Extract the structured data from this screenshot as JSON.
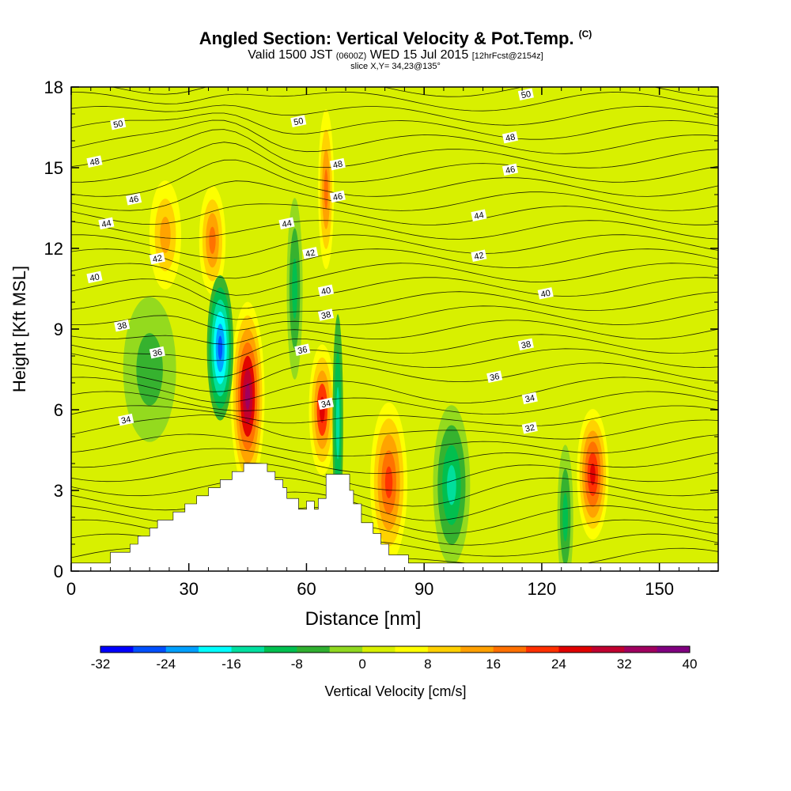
{
  "title": {
    "main": "Angled Section: Vertical Velocity & Pot.Temp.",
    "main_unit": "(C)",
    "valid_prefix": "Valid 1500 JST",
    "valid_utc": "(0600Z)",
    "valid_date": "WED 15 Jul 2015",
    "forecast": "[12hrFcst@2154z]",
    "slice": "slice X,Y= 34,23@135°"
  },
  "chart_data": {
    "type": "heatmap",
    "xlabel": "Distance [nm]",
    "ylabel": "Height [Kft MSL]",
    "xlim": [
      0,
      165
    ],
    "ylim": [
      0,
      18
    ],
    "xticks": [
      0,
      30,
      60,
      90,
      120,
      150
    ],
    "yticks": [
      0,
      3,
      6,
      9,
      12,
      15,
      18
    ],
    "colorbar": {
      "label": "Vertical Velocity [cm/s]",
      "ticks": [
        -32,
        -24,
        -16,
        -8,
        0,
        8,
        16,
        24,
        32,
        40
      ],
      "colors": [
        "#0000ff",
        "#0050ff",
        "#00a0ff",
        "#00ffff",
        "#00e0a0",
        "#00c050",
        "#30b030",
        "#90d820",
        "#d8f000",
        "#ffff00",
        "#ffd000",
        "#ffa000",
        "#ff7000",
        "#ff3000",
        "#e00000",
        "#c00030",
        "#a00060",
        "#800080"
      ]
    },
    "terrain": [
      [
        0,
        0.3
      ],
      [
        10,
        0.3
      ],
      [
        10,
        0.7
      ],
      [
        15,
        0.7
      ],
      [
        15,
        1.0
      ],
      [
        17,
        1.0
      ],
      [
        17,
        1.3
      ],
      [
        20,
        1.3
      ],
      [
        20,
        1.6
      ],
      [
        22,
        1.6
      ],
      [
        22,
        1.9
      ],
      [
        26,
        1.9
      ],
      [
        26,
        2.2
      ],
      [
        29,
        2.2
      ],
      [
        29,
        2.5
      ],
      [
        32,
        2.5
      ],
      [
        32,
        2.8
      ],
      [
        35,
        2.8
      ],
      [
        35,
        3.1
      ],
      [
        38,
        3.1
      ],
      [
        38,
        3.4
      ],
      [
        41,
        3.4
      ],
      [
        41,
        3.7
      ],
      [
        44,
        3.7
      ],
      [
        44,
        4.0
      ],
      [
        50,
        4.0
      ],
      [
        50,
        3.7
      ],
      [
        52,
        3.7
      ],
      [
        52,
        3.4
      ],
      [
        54,
        3.4
      ],
      [
        54,
        3.1
      ],
      [
        55,
        3.1
      ],
      [
        55,
        2.7
      ],
      [
        58,
        2.7
      ],
      [
        58,
        2.3
      ],
      [
        60,
        2.3
      ],
      [
        60,
        2.6
      ],
      [
        62,
        2.6
      ],
      [
        62,
        2.3
      ],
      [
        63,
        2.3
      ],
      [
        63,
        2.7
      ],
      [
        65,
        2.7
      ],
      [
        65,
        3.6
      ],
      [
        71,
        3.6
      ],
      [
        71,
        3.0
      ],
      [
        72,
        3.0
      ],
      [
        72,
        2.5
      ],
      [
        74,
        2.5
      ],
      [
        74,
        1.8
      ],
      [
        77,
        1.8
      ],
      [
        77,
        1.4
      ],
      [
        79,
        1.4
      ],
      [
        79,
        1.0
      ],
      [
        81,
        1.0
      ],
      [
        81,
        0.6
      ],
      [
        86,
        0.6
      ],
      [
        86,
        0.3
      ],
      [
        165,
        0.3
      ]
    ],
    "velocity_cells": [
      {
        "x": 45,
        "y": 6.5,
        "rx": 3.2,
        "ry": 2.6,
        "value": 34
      },
      {
        "x": 64,
        "y": 6.0,
        "rx": 2.5,
        "ry": 1.8,
        "value": 26
      },
      {
        "x": 81,
        "y": 3.3,
        "rx": 3.5,
        "ry": 2.2,
        "value": 22
      },
      {
        "x": 133,
        "y": 3.6,
        "rx": 3.0,
        "ry": 1.8,
        "value": 27
      },
      {
        "x": 36,
        "y": 12.3,
        "rx": 2.5,
        "ry": 1.5,
        "value": 18
      },
      {
        "x": 65,
        "y": 14.2,
        "rx": 1.5,
        "ry": 2.2,
        "value": 16
      },
      {
        "x": 24,
        "y": 12.5,
        "rx": 3.0,
        "ry": 1.5,
        "value": 12
      },
      {
        "x": 38,
        "y": 8.3,
        "rx": 2.5,
        "ry": 2.0,
        "value": -28
      },
      {
        "x": 97,
        "y": 3.2,
        "rx": 3.5,
        "ry": 2.2,
        "value": -16
      },
      {
        "x": 68,
        "y": 5.5,
        "rx": 1.0,
        "ry": 3.0,
        "value": -14
      },
      {
        "x": 57,
        "y": 10.5,
        "rx": 1.5,
        "ry": 2.5,
        "value": -10
      },
      {
        "x": 20,
        "y": 7.5,
        "rx": 5.0,
        "ry": 2.0,
        "value": -8
      },
      {
        "x": 126,
        "y": 2.0,
        "rx": 1.5,
        "ry": 2.0,
        "value": -10
      }
    ],
    "theta_labels": [
      {
        "x": 12,
        "y": 16.6,
        "value": "50"
      },
      {
        "x": 58,
        "y": 16.7,
        "value": "50"
      },
      {
        "x": 116,
        "y": 17.7,
        "value": "50"
      },
      {
        "x": 6,
        "y": 15.2,
        "value": "48"
      },
      {
        "x": 68,
        "y": 15.1,
        "value": "48"
      },
      {
        "x": 112,
        "y": 16.1,
        "value": "48"
      },
      {
        "x": 16,
        "y": 13.8,
        "value": "46"
      },
      {
        "x": 68,
        "y": 13.9,
        "value": "46"
      },
      {
        "x": 112,
        "y": 14.9,
        "value": "46"
      },
      {
        "x": 9,
        "y": 12.9,
        "value": "44"
      },
      {
        "x": 55,
        "y": 12.9,
        "value": "44"
      },
      {
        "x": 104,
        "y": 13.2,
        "value": "44"
      },
      {
        "x": 22,
        "y": 11.6,
        "value": "42"
      },
      {
        "x": 61,
        "y": 11.8,
        "value": "42"
      },
      {
        "x": 104,
        "y": 11.7,
        "value": "42"
      },
      {
        "x": 6,
        "y": 10.9,
        "value": "40"
      },
      {
        "x": 65,
        "y": 10.4,
        "value": "40"
      },
      {
        "x": 121,
        "y": 10.3,
        "value": "40"
      },
      {
        "x": 13,
        "y": 9.1,
        "value": "38"
      },
      {
        "x": 65,
        "y": 9.5,
        "value": "38"
      },
      {
        "x": 116,
        "y": 8.4,
        "value": "38"
      },
      {
        "x": 22,
        "y": 8.1,
        "value": "36"
      },
      {
        "x": 59,
        "y": 8.2,
        "value": "36"
      },
      {
        "x": 108,
        "y": 7.2,
        "value": "36"
      },
      {
        "x": 14,
        "y": 5.6,
        "value": "34"
      },
      {
        "x": 65,
        "y": 6.2,
        "value": "34"
      },
      {
        "x": 117,
        "y": 6.4,
        "value": "34"
      },
      {
        "x": 117,
        "y": 5.3,
        "value": "32"
      }
    ],
    "grid": false
  }
}
